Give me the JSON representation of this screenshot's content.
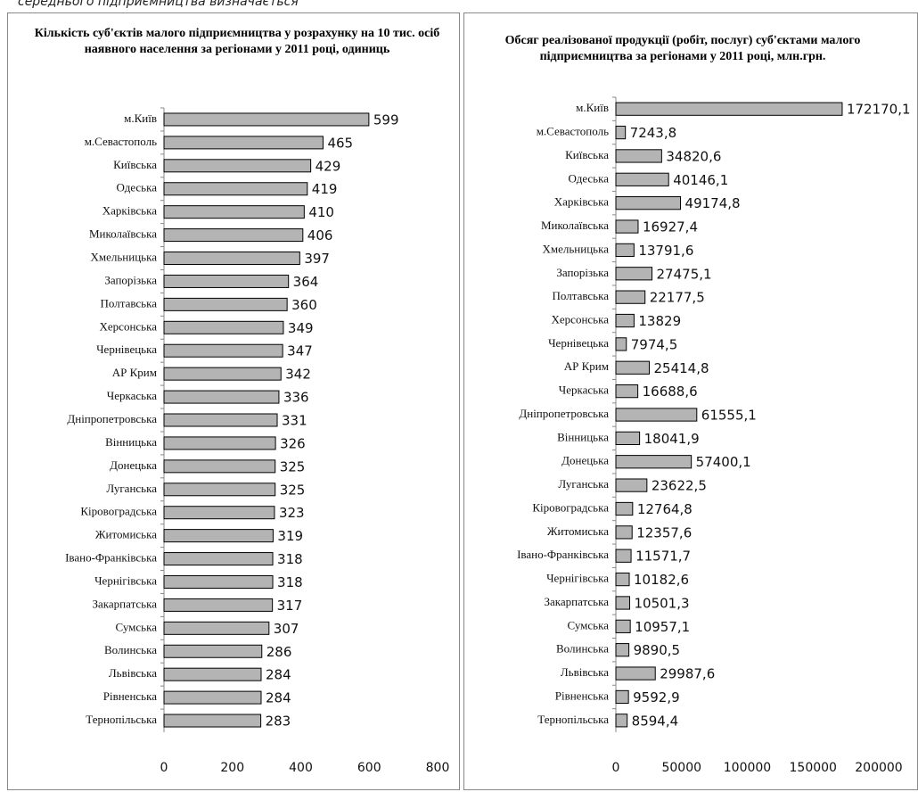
{
  "page_text": "середнього підприємництва визначається",
  "chart_data": [
    {
      "type": "bar",
      "orientation": "horizontal",
      "title": "Кількість суб'єктів малого підприємництва у розрахунку на 10 тис. осіб наявного населення за регіонами у 2011 році, одиниць",
      "categories": [
        "м.Київ",
        "м.Севастополь",
        "Київська",
        "Одеська",
        "Харківська",
        "Миколаївська",
        "Хмельницька",
        "Запорізька",
        "Полтавська",
        "Херсонська",
        "Чернівецька",
        "АР Крим",
        "Черкаська",
        "Дніпропетровська",
        "Вінницька",
        "Донецька",
        "Луганська",
        "Кіровоградська",
        "Житомиська",
        "Івано-Франківська",
        "Чернігівська",
        "Закарпатська",
        "Сумська",
        "Волинська",
        "Львівська",
        "Рівненська",
        "Тернопільська"
      ],
      "values": [
        599,
        465,
        429,
        419,
        410,
        406,
        397,
        364,
        360,
        349,
        347,
        342,
        336,
        331,
        326,
        325,
        325,
        323,
        319,
        318,
        318,
        317,
        307,
        286,
        284,
        284,
        283
      ],
      "color": "#b4b4b4",
      "xlim": [
        0,
        800
      ],
      "xticks": [
        0,
        200,
        400,
        600,
        800
      ]
    },
    {
      "type": "bar",
      "orientation": "horizontal",
      "title": "Обсяг реалізованої продукції (робіт, послуг) суб'єктами малого підприємництва за регіонами у 2011 році, млн.грн.",
      "categories": [
        "м.Київ",
        "м.Севастополь",
        "Київська",
        "Одеська",
        "Харківська",
        "Миколаївська",
        "Хмельницька",
        "Запорізька",
        "Полтавська",
        "Херсонська",
        "Чернівецька",
        "АР Крим",
        "Черкаська",
        "Дніпропетровська",
        "Вінницька",
        "Донецька",
        "Луганська",
        "Кіровоградська",
        "Житомиська",
        "Івано-Франківська",
        "Чернігівська",
        "Закарпатська",
        "Сумська",
        "Волинська",
        "Львівська",
        "Рівненська",
        "Тернопільська"
      ],
      "values": [
        172170.1,
        7243.8,
        34820.6,
        40146.1,
        49174.8,
        16927.4,
        13791.6,
        27475.1,
        22177.5,
        13829,
        7974.5,
        25414.8,
        16688.6,
        61555.1,
        18041.9,
        57400.1,
        23622.5,
        12764.8,
        12357.6,
        11571.7,
        10182.6,
        10501.3,
        10957.1,
        9890.5,
        29987.6,
        9592.9,
        8594.4
      ],
      "value_labels": [
        "172170,1",
        "7243,8",
        "34820,6",
        "40146,1",
        "49174,8",
        "16927,4",
        "13791,6",
        "27475,1",
        "22177,5",
        "13829",
        "7974,5",
        "25414,8",
        "16688,6",
        "61555,1",
        "18041,9",
        "57400,1",
        "23622,5",
        "12764,8",
        "12357,6",
        "11571,7",
        "10182,6",
        "10501,3",
        "10957,1",
        "9890,5",
        "29987,6",
        "9592,9",
        "8594,4"
      ],
      "color": "#b4b4b4",
      "xlim": [
        0,
        200000
      ],
      "xticks": [
        0,
        50000,
        100000,
        150000,
        200000
      ]
    }
  ]
}
